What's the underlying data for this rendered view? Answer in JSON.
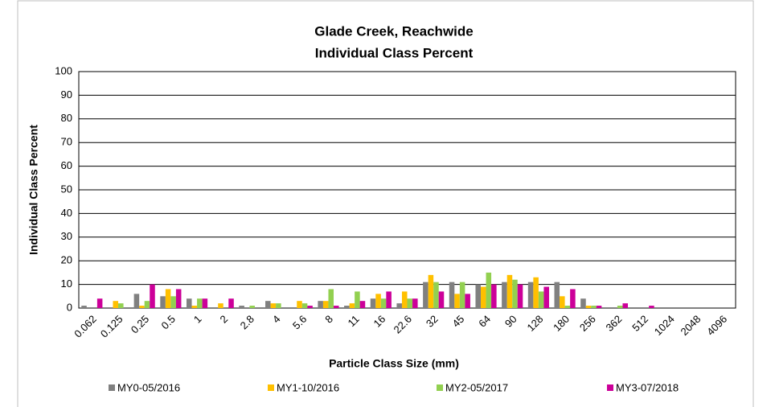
{
  "chart_data": {
    "type": "bar",
    "title": "Glade Creek, Reachwide",
    "subtitle": "Individual Class Percent",
    "x_label": "Particle Class Size (mm)",
    "y_label": "Individual Class Percent",
    "categories": [
      "0.062",
      "0.125",
      "0.25",
      "0.5",
      "1",
      "2",
      "2.8",
      "4",
      "5.6",
      "8",
      "11",
      "16",
      "22.6",
      "32",
      "45",
      "64",
      "90",
      "128",
      "180",
      "256",
      "362",
      "512",
      "1024",
      "2048",
      "4096"
    ],
    "series": [
      {
        "name": "MY0-05/2016",
        "color": "#808080",
        "values": [
          1,
          0,
          6,
          5,
          4,
          0,
          1,
          3,
          0,
          3,
          1,
          4,
          2,
          11,
          11,
          10,
          11,
          11,
          11,
          4,
          0,
          0,
          0,
          0,
          0
        ]
      },
      {
        "name": "MY1-10/2016",
        "color": "#ffc000",
        "values": [
          0,
          3,
          1,
          8,
          1,
          2,
          0,
          2,
          3,
          3,
          2,
          6,
          7,
          14,
          6,
          9,
          14,
          13,
          5,
          1,
          0,
          0,
          0,
          0,
          0
        ]
      },
      {
        "name": "MY2-05/2017",
        "color": "#92d050",
        "values": [
          0,
          2,
          3,
          5,
          4,
          0,
          1,
          2,
          2,
          8,
          7,
          4,
          4,
          11,
          11,
          15,
          12,
          7,
          1,
          1,
          1,
          0,
          0,
          0,
          0
        ]
      },
      {
        "name": "MY3-07/2018",
        "color": "#cc0099",
        "values": [
          4,
          0,
          10,
          8,
          4,
          4,
          0,
          0,
          1,
          1,
          3,
          7,
          4,
          7,
          6,
          10,
          10,
          9,
          8,
          1,
          2,
          1,
          0,
          0,
          0
        ]
      }
    ],
    "ylim": [
      0,
      100
    ],
    "yticks": [
      0,
      10,
      20,
      30,
      40,
      50,
      60,
      70,
      80,
      90,
      100
    ],
    "grid": true,
    "legend": "bottom"
  }
}
